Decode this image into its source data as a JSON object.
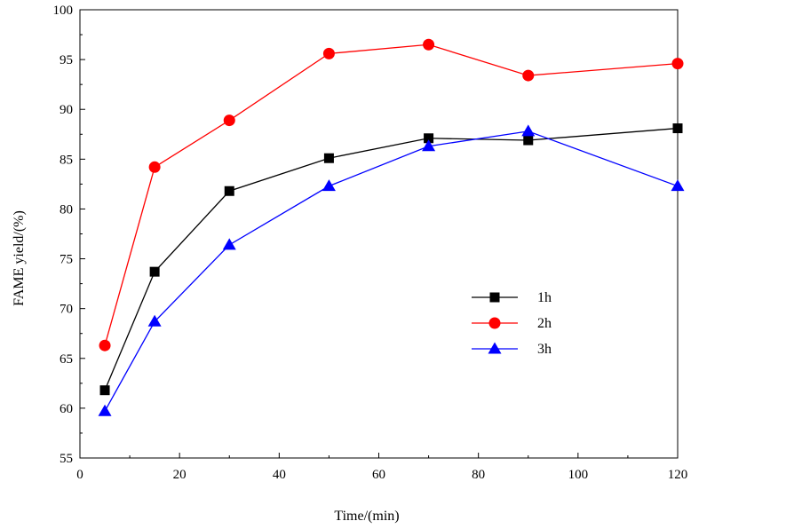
{
  "chart_data": {
    "type": "line",
    "title": "",
    "xlabel": "Time/(min)",
    "ylabel": "FAME yield/(%)",
    "xlim": [
      0,
      120
    ],
    "ylim": [
      55,
      100
    ],
    "xticks": [
      0,
      20,
      40,
      60,
      80,
      100,
      120
    ],
    "yticks": [
      55,
      60,
      65,
      70,
      75,
      80,
      85,
      90,
      95,
      100
    ],
    "x": [
      5,
      15,
      30,
      50,
      70,
      90,
      120
    ],
    "grid": false,
    "legend_position": "center-right",
    "series": [
      {
        "name": "1h",
        "color": "#000000",
        "marker": "square",
        "values": [
          61.8,
          73.7,
          81.8,
          85.1,
          87.1,
          86.9,
          88.1
        ]
      },
      {
        "name": "2h",
        "color": "#ff0000",
        "marker": "circle",
        "values": [
          66.3,
          84.2,
          88.9,
          95.6,
          96.5,
          93.4,
          94.6
        ]
      },
      {
        "name": "3h",
        "color": "#0000ff",
        "marker": "triangle",
        "values": [
          59.7,
          68.7,
          76.4,
          82.3,
          86.3,
          87.8,
          82.3
        ]
      }
    ]
  }
}
